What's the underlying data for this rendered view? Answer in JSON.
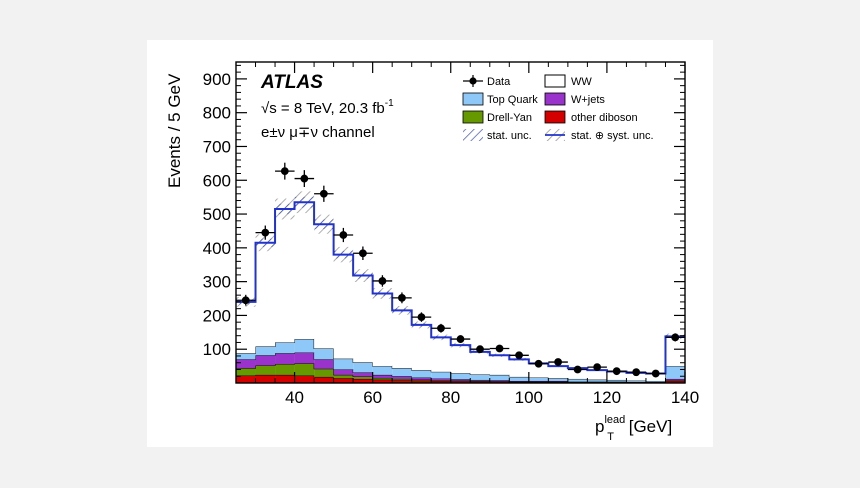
{
  "chart_data": {
    "type": "bar",
    "experiment": "ATLAS",
    "energy_label": "√s = 8 TeV, 20.3 fb",
    "energy_sup": "-1",
    "channel_label": "e±ν μ∓ν channel",
    "xlabel_main": "p",
    "xlabel_sup": "lead",
    "xlabel_sub": "T",
    "xlabel_unit": " [GeV]",
    "ylabel": "Events / 5 GeV",
    "xlim": [
      25,
      140
    ],
    "ylim": [
      0,
      950
    ],
    "xticks": [
      40,
      60,
      80,
      100,
      120,
      140
    ],
    "yticks": [
      100,
      200,
      300,
      400,
      500,
      600,
      700,
      800,
      900
    ],
    "bin_edges": [
      25,
      30,
      35,
      40,
      45,
      50,
      55,
      60,
      65,
      70,
      75,
      80,
      85,
      90,
      95,
      100,
      105,
      110,
      115,
      120,
      125,
      130,
      135,
      140
    ],
    "data": {
      "values": [
        245,
        445,
        627,
        605,
        560,
        438,
        384,
        302,
        252,
        195,
        162,
        130,
        100,
        102,
        82,
        57,
        62,
        40,
        47,
        35,
        32,
        28,
        135
      ],
      "errors": [
        16,
        21,
        25,
        25,
        24,
        21,
        20,
        17,
        16,
        14,
        13,
        11,
        10,
        10,
        9,
        8,
        8,
        6,
        7,
        6,
        6,
        5,
        12
      ]
    },
    "total_prediction": [
      240,
      415,
      515,
      535,
      470,
      380,
      318,
      265,
      215,
      172,
      135,
      112,
      92,
      82,
      70,
      58,
      50,
      44,
      38,
      34,
      30,
      28,
      138
    ],
    "stack": [
      {
        "name": "other diboson",
        "color": "#d40000",
        "values": [
          22,
          24,
          24,
          22,
          18,
          14,
          12,
          10,
          8,
          7,
          6,
          5,
          4,
          4,
          3,
          3,
          3,
          2,
          2,
          2,
          2,
          2,
          6
        ]
      },
      {
        "name": "Drell-Yan",
        "color": "#669900",
        "values": [
          22,
          28,
          32,
          36,
          24,
          10,
          7,
          5,
          4,
          3,
          2,
          2,
          2,
          1,
          1,
          1,
          1,
          1,
          1,
          1,
          0,
          0,
          2
        ]
      },
      {
        "name": "W+jets",
        "color": "#9933cc",
        "values": [
          26,
          30,
          32,
          32,
          28,
          16,
          12,
          9,
          8,
          6,
          5,
          4,
          3,
          3,
          2,
          2,
          2,
          1,
          1,
          1,
          1,
          1,
          4
        ]
      },
      {
        "name": "Top Quark",
        "color": "#8ec8f8",
        "values": [
          18,
          26,
          32,
          40,
          32,
          32,
          30,
          26,
          24,
          22,
          20,
          18,
          16,
          16,
          12,
          10,
          8,
          8,
          6,
          5,
          4,
          3,
          38
        ]
      },
      {
        "name": "WW",
        "color": "#ffffff",
        "values": [
          152,
          307,
          395,
          405,
          368,
          308,
          257,
          215,
          171,
          134,
          102,
          83,
          67,
          58,
          52,
          42,
          36,
          32,
          28,
          25,
          23,
          22,
          88
        ]
      }
    ],
    "stat_unc_frac": 0.03,
    "syst_unc_frac": 0.06,
    "legend": {
      "data": "Data",
      "ww": "WW",
      "top": "Top Quark",
      "wjets": "W+jets",
      "dy": "Drell-Yan",
      "diboson": "other diboson",
      "stat": "stat. unc.",
      "statsyst": "stat. ⊕ syst. unc."
    }
  }
}
